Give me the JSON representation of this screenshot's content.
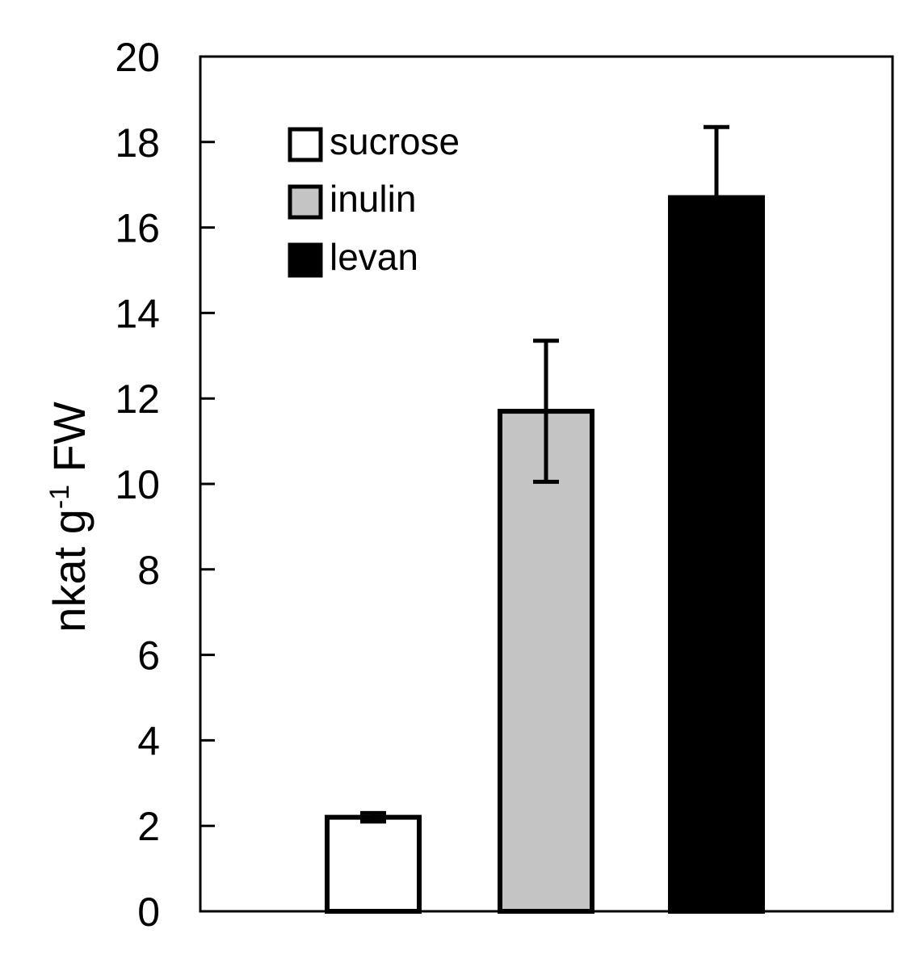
{
  "chart_data": {
    "type": "bar",
    "categories": [
      "sucrose",
      "inulin",
      "levan"
    ],
    "values": [
      2.2,
      11.7,
      16.7
    ],
    "errors": [
      0.1,
      1.65,
      1.65
    ],
    "colors": [
      "#ffffff",
      "#c4c4c4",
      "#000000"
    ],
    "ylabel_main": "nkat g",
    "ylabel_sup": "-1",
    "ylabel_tail": " FW",
    "ylim": [
      0,
      20
    ],
    "yticks": [
      "0",
      "2",
      "4",
      "6",
      "8",
      "10",
      "12",
      "14",
      "16",
      "18",
      "20"
    ],
    "legend": {
      "position": "top-left",
      "entries": [
        {
          "label": "sucrose",
          "color": "#ffffff"
        },
        {
          "label": "inulin",
          "color": "#c4c4c4"
        },
        {
          "label": "levan",
          "color": "#000000"
        }
      ]
    },
    "grid": false
  }
}
